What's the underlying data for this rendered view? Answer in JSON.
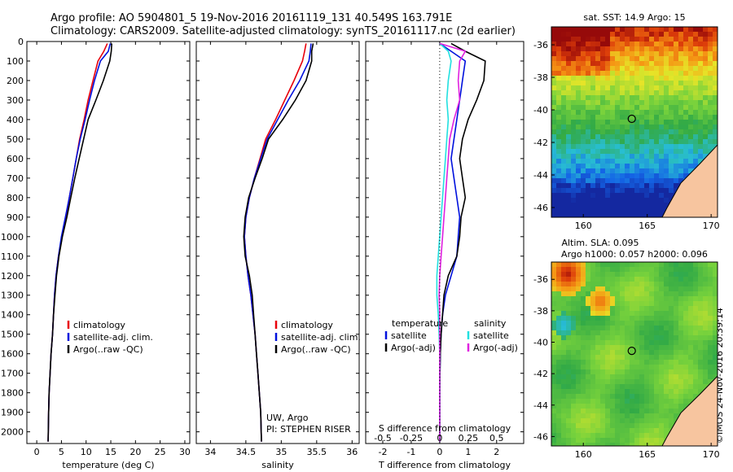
{
  "header": {
    "line1": "Argo profile: AO 5904801_5 19-Nov-2016 20161119_131 40.549S 163.791E",
    "line2": "Climatology: CARS2009. Satellite-adjusted climatology: synTS_20161117.nc (2d earlier)"
  },
  "stamp": "©IMOS 24-Nov-2016 20:39:14",
  "colors": {
    "climatology": "#e8000b",
    "satellite": "#0011dd",
    "argo": "#000000",
    "sat_s": "#22e0e0",
    "argo_s": "#e020e0"
  },
  "chart_data": [
    {
      "type": "line",
      "xlabel": "temperature (deg C)",
      "ylabel": "",
      "xlim": [
        -2,
        31
      ],
      "ylim": [
        2060,
        0
      ],
      "xticks": [
        0,
        5,
        10,
        15,
        20,
        25,
        30
      ],
      "yticks": [
        0,
        100,
        200,
        300,
        400,
        500,
        600,
        700,
        800,
        900,
        1000,
        1100,
        1200,
        1300,
        1400,
        1500,
        1600,
        1700,
        1800,
        1900,
        2000
      ],
      "legend": {
        "entries": [
          "climatology",
          "satellite-adj. clim.",
          "Argo(..raw -QC)"
        ],
        "placement": "lower-middle"
      },
      "series": [
        {
          "name": "climatology",
          "color_key": "climatology",
          "x": [
            14.3,
            13.6,
            12.4,
            11.4,
            10.4,
            9.6,
            8.7,
            8.0,
            7.3,
            6.6,
            5.9,
            5.1,
            4.4,
            3.9,
            3.6,
            3.4,
            3.2,
            2.9,
            2.7,
            2.5,
            2.4,
            2.3
          ],
          "y": [
            10,
            50,
            100,
            200,
            300,
            400,
            500,
            600,
            700,
            800,
            900,
            1000,
            1100,
            1200,
            1300,
            1400,
            1500,
            1600,
            1700,
            1800,
            1900,
            2050
          ]
        },
        {
          "name": "satellite-adj. clim.",
          "color_key": "satellite",
          "x": [
            14.9,
            14.5,
            12.9,
            11.7,
            10.7,
            9.8,
            8.8,
            8.0,
            7.3,
            6.6,
            5.8,
            5.0,
            4.4,
            3.9,
            3.6,
            3.4,
            3.2,
            2.9,
            2.7,
            2.5,
            2.4,
            2.3
          ],
          "y": [
            10,
            50,
            100,
            200,
            300,
            400,
            500,
            600,
            700,
            800,
            900,
            1000,
            1100,
            1200,
            1300,
            1400,
            1500,
            1600,
            1700,
            1800,
            1900,
            2050
          ]
        },
        {
          "name": "Argo(..raw -QC)",
          "color_key": "argo",
          "x": [
            15.2,
            15.1,
            14.8,
            13.5,
            12.0,
            10.4,
            9.5,
            8.6,
            7.7,
            6.9,
            6.1,
            5.2,
            4.5,
            4.0,
            3.7,
            3.4,
            3.2,
            2.9,
            2.7,
            2.5,
            2.4,
            2.3
          ],
          "y": [
            10,
            50,
            100,
            200,
            300,
            400,
            500,
            600,
            700,
            800,
            900,
            1000,
            1100,
            1200,
            1300,
            1400,
            1500,
            1600,
            1700,
            1800,
            1900,
            2050
          ]
        }
      ]
    },
    {
      "type": "line",
      "xlabel": "salinity",
      "ylabel": "",
      "xlim": [
        33.8,
        36.1
      ],
      "ylim": [
        2060,
        0
      ],
      "xticks": [
        34,
        34.5,
        35,
        35.5,
        36
      ],
      "yticks": [
        0,
        100,
        200,
        300,
        400,
        500,
        600,
        700,
        800,
        900,
        1000,
        1100,
        1200,
        1300,
        1400,
        1500,
        1600,
        1700,
        1800,
        1900,
        2000
      ],
      "legend": {
        "entries": [
          "climatology",
          "satellite-adj. clim.",
          "Argo(..raw -QC)"
        ],
        "placement": "lower-right"
      },
      "annotation": [
        "UW, Argo",
        "PI: STEPHEN RISER"
      ],
      "series": [
        {
          "name": "climatology",
          "color_key": "climatology",
          "x": [
            35.35,
            35.33,
            35.3,
            35.18,
            35.05,
            34.92,
            34.78,
            34.7,
            34.62,
            34.55,
            34.5,
            34.48,
            34.5,
            34.53,
            34.57,
            34.6,
            34.63,
            34.65,
            34.67,
            34.69,
            34.71,
            34.72
          ],
          "y": [
            10,
            50,
            100,
            200,
            300,
            400,
            500,
            600,
            700,
            800,
            900,
            1000,
            1100,
            1200,
            1300,
            1400,
            1500,
            1600,
            1700,
            1800,
            1900,
            2050
          ]
        },
        {
          "name": "satellite-adj. clim.",
          "color_key": "satellite",
          "x": [
            35.42,
            35.41,
            35.39,
            35.26,
            35.1,
            34.95,
            34.8,
            34.71,
            34.62,
            34.55,
            34.5,
            34.48,
            34.5,
            34.53,
            34.57,
            34.6,
            34.63,
            34.65,
            34.67,
            34.69,
            34.71,
            34.72
          ],
          "y": [
            10,
            50,
            100,
            200,
            300,
            400,
            500,
            600,
            700,
            800,
            900,
            1000,
            1100,
            1200,
            1300,
            1400,
            1500,
            1600,
            1700,
            1800,
            1900,
            2050
          ]
        },
        {
          "name": "Argo(..raw -QC)",
          "color_key": "argo",
          "x": [
            35.45,
            35.43,
            35.43,
            35.35,
            35.2,
            35.02,
            34.82,
            34.73,
            34.63,
            34.54,
            34.49,
            34.47,
            34.49,
            34.55,
            34.59,
            34.61,
            34.63,
            34.65,
            34.67,
            34.69,
            34.71,
            34.72
          ],
          "y": [
            10,
            50,
            100,
            200,
            300,
            400,
            500,
            600,
            700,
            800,
            900,
            1000,
            1100,
            1200,
            1300,
            1400,
            1500,
            1600,
            1700,
            1800,
            1900,
            2050
          ]
        }
      ]
    },
    {
      "type": "line",
      "xlabel": "T difference from climatology",
      "xlabel_top": "S difference from climatology",
      "xlim": [
        -2.6,
        2.95
      ],
      "ylim": [
        2060,
        0
      ],
      "xticks": [
        -2,
        -1,
        0,
        1,
        2
      ],
      "xticks_s": [
        -0.5,
        -0.25,
        0,
        0.25,
        0.5
      ],
      "legend": {
        "entries": [
          "temperature",
          "satellite",
          "Argo(-adj)",
          "salinity",
          "satellite",
          "Argo(-adj)"
        ],
        "placement": "lower-middle"
      },
      "series": [
        {
          "name": "satellite",
          "color_key": "satellite",
          "x": [
            0.0,
            0.4,
            0.9,
            0.8,
            0.7,
            0.6,
            0.5,
            0.4,
            0.5,
            0.6,
            0.7,
            0.65,
            0.6,
            0.4,
            0.2,
            0.1,
            0.05,
            0.02,
            0.01,
            0.0,
            0.0,
            0.0
          ],
          "y": [
            10,
            50,
            100,
            200,
            300,
            400,
            500,
            600,
            700,
            800,
            900,
            1000,
            1100,
            1200,
            1300,
            1400,
            1500,
            1600,
            1700,
            1800,
            1900,
            2050
          ]
        },
        {
          "name": "Argo(-adj)",
          "color_key": "argo",
          "x": [
            0.4,
            0.9,
            1.6,
            1.55,
            1.3,
            1.0,
            0.8,
            0.7,
            0.8,
            0.9,
            0.75,
            0.7,
            0.6,
            0.3,
            0.15,
            0.1,
            0.05,
            0.02,
            0.01,
            0.0,
            0.0,
            0.0
          ],
          "y": [
            10,
            50,
            100,
            200,
            300,
            400,
            500,
            600,
            700,
            800,
            900,
            1000,
            1100,
            1200,
            1300,
            1400,
            1500,
            1600,
            1700,
            1800,
            1900,
            2050
          ]
        },
        {
          "name": "satellite",
          "color_key": "sat_s",
          "x": [
            0.0,
            0.3,
            0.4,
            0.3,
            0.25,
            0.3,
            0.25,
            0.2,
            0.15,
            0.1,
            0.05,
            0.0,
            -0.05,
            -0.1,
            -0.1,
            -0.05,
            -0.02,
            0.0,
            0.0,
            0.0,
            0.0,
            0.0
          ],
          "y": [
            10,
            50,
            100,
            200,
            300,
            400,
            500,
            600,
            700,
            800,
            900,
            1000,
            1100,
            1200,
            1300,
            1400,
            1500,
            1600,
            1700,
            1800,
            1900,
            2050
          ]
        },
        {
          "name": "Argo(-adj)",
          "color_key": "argo_s",
          "x": [
            0.0,
            0.9,
            0.7,
            0.65,
            0.7,
            0.5,
            0.35,
            0.3,
            0.25,
            0.2,
            0.15,
            0.1,
            0.05,
            0.0,
            -0.02,
            0.0,
            0.0,
            0.0,
            0.0,
            0.0,
            0.0,
            0.0
          ],
          "y": [
            10,
            50,
            100,
            200,
            300,
            400,
            500,
            600,
            700,
            800,
            900,
            1000,
            1100,
            1200,
            1300,
            1400,
            1500,
            1600,
            1700,
            1800,
            1900,
            2050
          ]
        }
      ]
    },
    {
      "type": "heatmap",
      "title": "sat. SST: 14.9 Argo: 15",
      "xlim": [
        157.5,
        170.5
      ],
      "ylim": [
        -46.6,
        -34.9
      ],
      "xticks": [
        160,
        165,
        170
      ],
      "yticks": [
        -36,
        -38,
        -40,
        -42,
        -44,
        -46
      ],
      "marker": {
        "lon": 163.791,
        "lat": -40.549
      }
    },
    {
      "type": "heatmap",
      "title_lines": [
        "Altim. SLA: 0.095",
        "Argo h1000: 0.057 h2000: 0.096"
      ],
      "xlim": [
        157.5,
        170.5
      ],
      "ylim": [
        -46.6,
        -34.9
      ],
      "xticks": [
        160,
        165,
        170
      ],
      "yticks": [
        -36,
        -38,
        -40,
        -42,
        -44,
        -46
      ],
      "marker": {
        "lon": 163.791,
        "lat": -40.549
      }
    }
  ]
}
